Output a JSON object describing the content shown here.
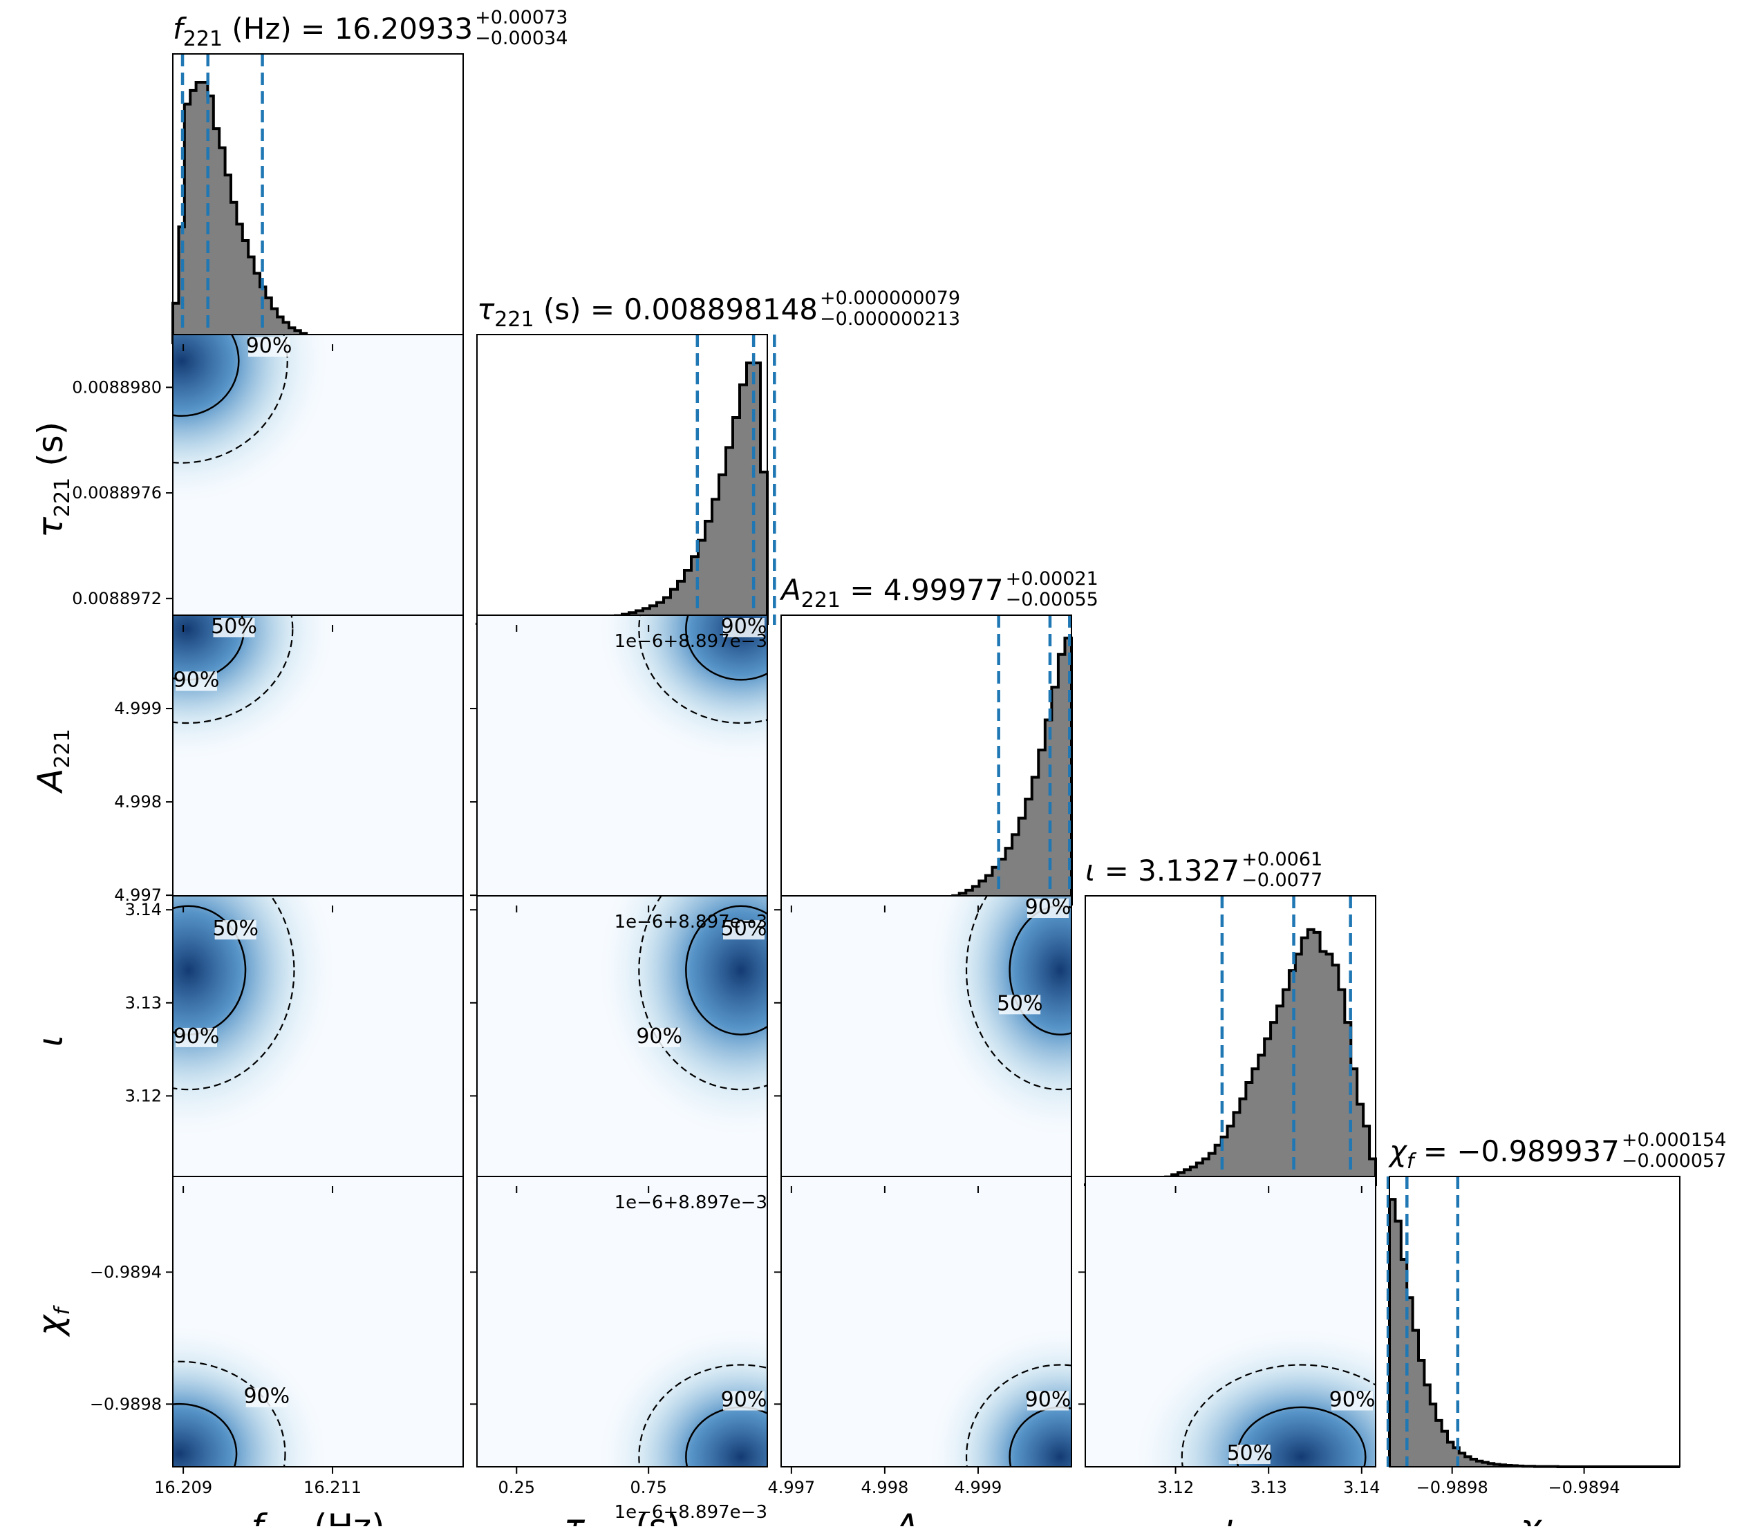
{
  "chart_data": {
    "type": "corner",
    "parameters": [
      {
        "key": "f",
        "label": "f_221 (Hz)",
        "title": "f_221 (Hz) = 16.20933 (+0.00073/−0.00034)",
        "median": 16.20933,
        "err_plus": 0.00073,
        "err_minus": 0.00034,
        "range": [
          16.20886,
          16.21275
        ],
        "ticks": [
          16.209,
          16.211
        ],
        "tick_labels": [
          "16.209",
          "16.211"
        ]
      },
      {
        "key": "tau",
        "label": "τ_221 (s)",
        "title": "τ_221 (s) = 0.008898148 (+0.000000079/−0.000000213)",
        "median": 0.008898148,
        "err_plus": 7.9e-08,
        "err_minus": 2.13e-07,
        "range": [
          0.0088971,
          0.0088982
        ],
        "ticks": [
          0.0088972,
          0.0088976,
          0.008898
        ],
        "tick_labels": [
          "0.0088972",
          "0.0088976",
          "0.0088980"
        ],
        "x_ticks": [
          0.00889725,
          0.00889775
        ],
        "x_tick_labels": [
          "0.25",
          "0.75"
        ],
        "x_offset_label": "1e−6+8.897e−3"
      },
      {
        "key": "A",
        "label": "A_221",
        "title": "A_221 = 4.99977 (+0.00021/−0.00055)",
        "median": 4.99977,
        "err_plus": 0.00021,
        "err_minus": 0.00055,
        "range": [
          4.99689,
          5.0
        ],
        "ticks": [
          4.997,
          4.998,
          4.999
        ],
        "tick_labels": [
          "4.997",
          "4.998",
          "4.999"
        ]
      },
      {
        "key": "iota",
        "label": "ι",
        "title": "ι = 3.1327 (+0.0061/−0.0077)",
        "median": 3.1327,
        "err_plus": 0.0061,
        "err_minus": 0.0077,
        "range": [
          3.1103,
          3.1415
        ],
        "ticks": [
          3.12,
          3.13,
          3.14
        ],
        "tick_labels": [
          "3.12",
          "3.13",
          "3.14"
        ]
      },
      {
        "key": "chi",
        "label": "χ_f",
        "title": "χ_f = −0.989937 (+0.000154/−0.000057)",
        "median": -0.989937,
        "err_plus": 0.000154,
        "err_minus": 5.7e-05,
        "range": [
          -0.98999,
          -0.98911
        ],
        "ticks": [
          -0.9898,
          -0.9894
        ],
        "tick_labels": [
          "−0.9898",
          "−0.9894"
        ]
      }
    ],
    "histograms": {
      "f": [
        0.15,
        0.43,
        0.88,
        0.93,
        0.96,
        0.96,
        0.91,
        0.79,
        0.72,
        0.62,
        0.52,
        0.44,
        0.38,
        0.32,
        0.26,
        0.21,
        0.17,
        0.13,
        0.1,
        0.08,
        0.06,
        0.05,
        0.04,
        0.03,
        0.025,
        0.02,
        0.015,
        0.012,
        0.01,
        0.008,
        0.006,
        0.005,
        0.004,
        0.003,
        0.003,
        0.002,
        0.002,
        0.002,
        0.001,
        0.001,
        0.001,
        0.001,
        0.001,
        0.001,
        0.0,
        0.0,
        0.0,
        0.0,
        0.0,
        0.0
      ],
      "tau": [
        0.003,
        0.003,
        0.004,
        0.004,
        0.005,
        0.005,
        0.006,
        0.007,
        0.008,
        0.009,
        0.01,
        0.011,
        0.012,
        0.014,
        0.016,
        0.018,
        0.02,
        0.023,
        0.026,
        0.03,
        0.034,
        0.039,
        0.045,
        0.052,
        0.06,
        0.07,
        0.082,
        0.1,
        0.13,
        0.16,
        0.2,
        0.25,
        0.31,
        0.38,
        0.46,
        0.55,
        0.65,
        0.76,
        0.88,
        0.96,
        0.96,
        0.56
      ],
      "A": [
        0.0,
        0.0,
        0.0,
        0.0,
        0.0,
        0.001,
        0.001,
        0.001,
        0.002,
        0.002,
        0.002,
        0.003,
        0.003,
        0.004,
        0.005,
        0.006,
        0.007,
        0.008,
        0.009,
        0.011,
        0.013,
        0.015,
        0.018,
        0.021,
        0.025,
        0.03,
        0.036,
        0.045,
        0.056,
        0.07,
        0.09,
        0.11,
        0.14,
        0.17,
        0.21,
        0.26,
        0.32,
        0.39,
        0.47,
        0.57,
        0.68,
        0.8,
        0.92,
        0.98
      ],
      "iota": [
        0.005,
        0.005,
        0.006,
        0.007,
        0.008,
        0.009,
        0.01,
        0.012,
        0.014,
        0.016,
        0.019,
        0.023,
        0.028,
        0.034,
        0.042,
        0.05,
        0.06,
        0.07,
        0.085,
        0.1,
        0.12,
        0.15,
        0.18,
        0.22,
        0.27,
        0.32,
        0.38,
        0.43,
        0.48,
        0.54,
        0.6,
        0.66,
        0.72,
        0.79,
        0.85,
        0.91,
        0.94,
        0.93,
        0.86,
        0.85,
        0.81,
        0.72,
        0.6,
        0.43,
        0.3,
        0.22,
        0.1
      ],
      "chi": [
        0.98,
        0.9,
        0.76,
        0.62,
        0.5,
        0.39,
        0.3,
        0.23,
        0.17,
        0.13,
        0.09,
        0.07,
        0.05,
        0.037,
        0.028,
        0.021,
        0.016,
        0.012,
        0.009,
        0.007,
        0.005,
        0.004,
        0.003,
        0.002,
        0.002,
        0.001,
        0.001,
        0.001,
        0.001,
        0.0,
        0.0,
        0.0,
        0.0,
        0.0,
        0.0,
        0.0,
        0.0,
        0.0,
        0.0,
        0.0,
        0.0,
        0.0,
        0.0,
        0.0,
        0.0,
        0.0,
        0.0,
        0.0,
        0.0,
        0.0
      ]
    },
    "joint_peaks": [
      {
        "x": "f",
        "y": "tau",
        "cx": 16.20898,
        "cy": 0.0088981,
        "labels": [
          "90%"
        ]
      },
      {
        "x": "f",
        "y": "A",
        "cx": 16.20905,
        "cy": 4.99985,
        "labels": [
          "50%",
          "90%"
        ]
      },
      {
        "x": "tau",
        "y": "A",
        "cx": 0.0088981,
        "cy": 4.99985,
        "labels": [
          "90%"
        ]
      },
      {
        "x": "f",
        "y": "iota",
        "cx": 16.20907,
        "cy": 3.1335,
        "labels": [
          "50%",
          "90%"
        ]
      },
      {
        "x": "tau",
        "y": "iota",
        "cx": 0.0088981,
        "cy": 3.1335,
        "labels": [
          "50%",
          "90%"
        ]
      },
      {
        "x": "A",
        "y": "iota",
        "cx": 4.99988,
        "cy": 3.1335,
        "labels": [
          "90%",
          "50%"
        ]
      },
      {
        "x": "f",
        "y": "chi",
        "cx": 16.20895,
        "cy": -0.98995,
        "labels": [
          "90%"
        ]
      },
      {
        "x": "tau",
        "y": "chi",
        "cx": 0.0088981,
        "cy": -0.98996,
        "labels": [
          "90%"
        ]
      },
      {
        "x": "A",
        "y": "chi",
        "cx": 4.99988,
        "cy": -0.98996,
        "labels": [
          "90%"
        ]
      },
      {
        "x": "iota",
        "y": "chi",
        "cx": 3.1335,
        "cy": -0.98996,
        "labels": [
          "90%",
          "50%"
        ]
      }
    ],
    "colors": {
      "hist_fill": "#808080",
      "hist_edge": "#000000",
      "quantile_line": "#1f77b4",
      "density": "#08519c"
    }
  }
}
